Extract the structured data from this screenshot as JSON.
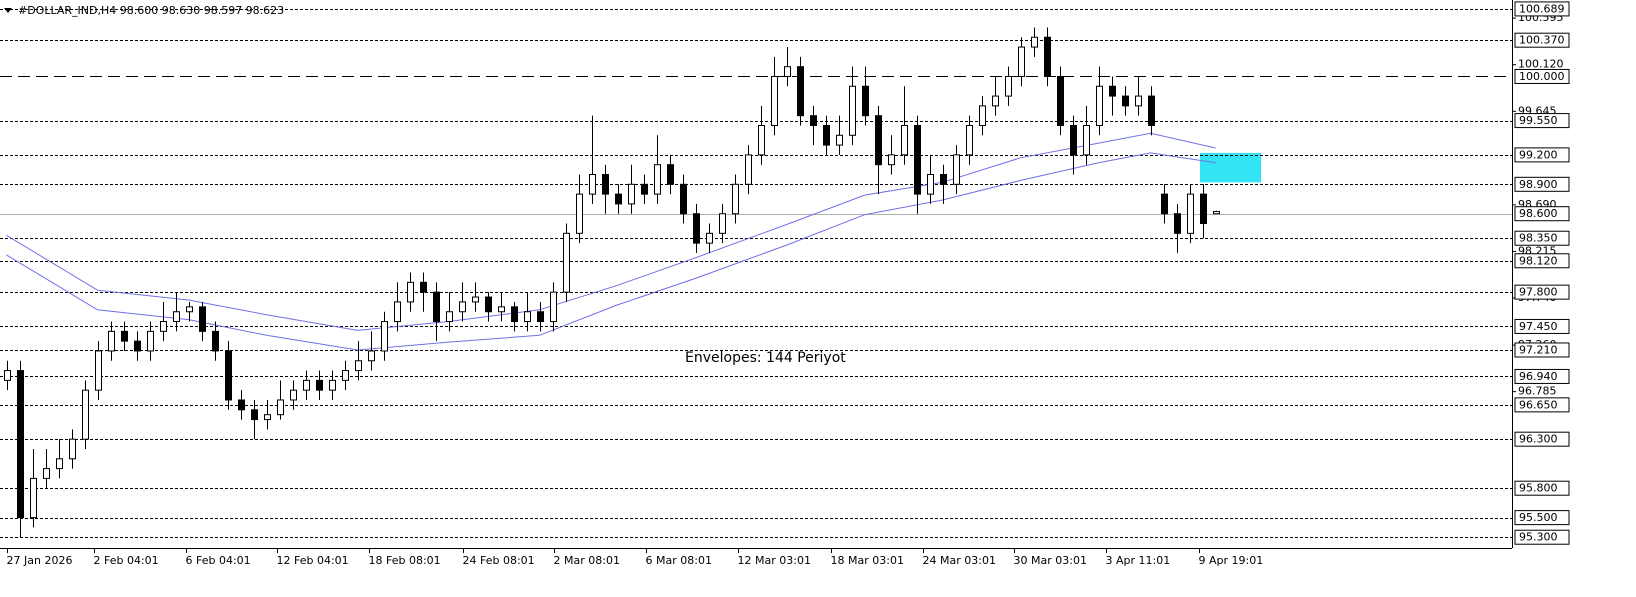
{
  "chart_data": {
    "type": "candlestick",
    "title": "#DOLLAR_IND,H4  98.600 98.630 98.597 98.623",
    "annotation": "Envelopes: 144 Periyot",
    "xlim": [
      -0.5,
      115.8
    ],
    "ylim": [
      95.19,
      100.78
    ],
    "candles": [
      [
        96.9,
        97.1,
        96.8,
        97.0
      ],
      [
        97.0,
        97.1,
        95.3,
        95.5
      ],
      [
        95.5,
        96.2,
        95.4,
        95.9
      ],
      [
        95.9,
        96.2,
        95.8,
        96.0
      ],
      [
        96.0,
        96.3,
        95.9,
        96.1
      ],
      [
        96.1,
        96.4,
        96.0,
        96.3
      ],
      [
        96.3,
        96.9,
        96.2,
        96.8
      ],
      [
        96.8,
        97.3,
        96.7,
        97.2
      ],
      [
        97.2,
        97.5,
        97.1,
        97.4
      ],
      [
        97.4,
        97.5,
        97.2,
        97.3
      ],
      [
        97.3,
        97.4,
        97.1,
        97.2
      ],
      [
        97.2,
        97.5,
        97.1,
        97.4
      ],
      [
        97.4,
        97.7,
        97.3,
        97.5
      ],
      [
        97.5,
        97.8,
        97.4,
        97.6
      ],
      [
        97.6,
        97.7,
        97.5,
        97.65
      ],
      [
        97.65,
        97.7,
        97.3,
        97.4
      ],
      [
        97.4,
        97.5,
        97.1,
        97.2
      ],
      [
        97.2,
        97.3,
        96.6,
        96.7
      ],
      [
        96.7,
        96.8,
        96.5,
        96.6
      ],
      [
        96.6,
        96.7,
        96.3,
        96.5
      ],
      [
        96.5,
        96.7,
        96.4,
        96.55
      ],
      [
        96.55,
        96.9,
        96.5,
        96.7
      ],
      [
        96.7,
        96.9,
        96.6,
        96.8
      ],
      [
        96.8,
        97.0,
        96.7,
        96.9
      ],
      [
        96.9,
        97.0,
        96.7,
        96.8
      ],
      [
        96.8,
        97.0,
        96.7,
        96.9
      ],
      [
        96.9,
        97.1,
        96.8,
        97.0
      ],
      [
        97.0,
        97.3,
        96.9,
        97.1
      ],
      [
        97.1,
        97.4,
        97.0,
        97.2
      ],
      [
        97.2,
        97.6,
        97.1,
        97.5
      ],
      [
        97.5,
        97.9,
        97.4,
        97.7
      ],
      [
        97.7,
        98.0,
        97.6,
        97.9
      ],
      [
        97.9,
        98.0,
        97.6,
        97.8
      ],
      [
        97.8,
        97.9,
        97.3,
        97.5
      ],
      [
        97.5,
        97.8,
        97.4,
        97.6
      ],
      [
        97.6,
        97.9,
        97.5,
        97.7
      ],
      [
        97.7,
        97.9,
        97.6,
        97.75
      ],
      [
        97.75,
        97.8,
        97.5,
        97.6
      ],
      [
        97.6,
        97.8,
        97.5,
        97.65
      ],
      [
        97.65,
        97.7,
        97.4,
        97.5
      ],
      [
        97.5,
        97.8,
        97.4,
        97.6
      ],
      [
        97.6,
        97.7,
        97.4,
        97.5
      ],
      [
        97.5,
        97.9,
        97.4,
        97.8
      ],
      [
        97.8,
        98.5,
        97.7,
        98.4
      ],
      [
        98.4,
        99.0,
        98.3,
        98.8
      ],
      [
        98.8,
        99.6,
        98.7,
        99.0
      ],
      [
        99.0,
        99.1,
        98.6,
        98.8
      ],
      [
        98.8,
        98.9,
        98.6,
        98.7
      ],
      [
        98.7,
        99.1,
        98.6,
        98.9
      ],
      [
        98.9,
        99.0,
        98.7,
        98.8
      ],
      [
        98.8,
        99.4,
        98.7,
        99.1
      ],
      [
        99.1,
        99.2,
        98.8,
        98.9
      ],
      [
        98.9,
        99.0,
        98.5,
        98.6
      ],
      [
        98.6,
        98.7,
        98.2,
        98.3
      ],
      [
        98.3,
        98.5,
        98.2,
        98.4
      ],
      [
        98.4,
        98.7,
        98.3,
        98.6
      ],
      [
        98.6,
        99.0,
        98.5,
        98.9
      ],
      [
        98.9,
        99.3,
        98.8,
        99.2
      ],
      [
        99.2,
        99.7,
        99.1,
        99.5
      ],
      [
        99.5,
        100.2,
        99.4,
        100.0
      ],
      [
        100.0,
        100.3,
        99.9,
        100.1
      ],
      [
        100.1,
        100.2,
        99.5,
        99.6
      ],
      [
        99.6,
        99.7,
        99.3,
        99.5
      ],
      [
        99.5,
        99.6,
        99.2,
        99.3
      ],
      [
        99.3,
        99.6,
        99.2,
        99.4
      ],
      [
        99.4,
        100.1,
        99.3,
        99.9
      ],
      [
        99.9,
        100.1,
        99.5,
        99.6
      ],
      [
        99.6,
        99.7,
        98.8,
        99.1
      ],
      [
        99.1,
        99.4,
        99.0,
        99.2
      ],
      [
        99.2,
        99.9,
        99.1,
        99.5
      ],
      [
        99.5,
        99.6,
        98.6,
        98.8
      ],
      [
        98.8,
        99.2,
        98.7,
        99.0
      ],
      [
        99.0,
        99.1,
        98.7,
        98.9
      ],
      [
        98.9,
        99.3,
        98.8,
        99.2
      ],
      [
        99.2,
        99.6,
        99.1,
        99.5
      ],
      [
        99.5,
        99.8,
        99.4,
        99.7
      ],
      [
        99.7,
        100.0,
        99.6,
        99.8
      ],
      [
        99.8,
        100.1,
        99.7,
        100.0
      ],
      [
        100.0,
        100.4,
        99.9,
        100.3
      ],
      [
        100.3,
        100.5,
        100.2,
        100.4
      ],
      [
        100.4,
        100.5,
        99.9,
        100.0
      ],
      [
        100.0,
        100.1,
        99.4,
        99.5
      ],
      [
        99.5,
        99.6,
        99.0,
        99.2
      ],
      [
        99.2,
        99.7,
        99.1,
        99.5
      ],
      [
        99.5,
        100.1,
        99.4,
        99.9
      ],
      [
        99.9,
        100.0,
        99.6,
        99.8
      ],
      [
        99.8,
        99.9,
        99.6,
        99.7
      ],
      [
        99.7,
        100.0,
        99.6,
        99.8
      ],
      [
        99.8,
        99.9,
        99.4,
        99.5
      ],
      [
        98.8,
        98.9,
        98.5,
        98.6
      ],
      [
        98.6,
        98.7,
        98.2,
        98.4
      ],
      [
        98.4,
        98.9,
        98.3,
        98.8
      ],
      [
        98.8,
        98.9,
        98.35,
        98.5
      ],
      [
        98.6,
        98.63,
        98.597,
        98.623
      ]
    ],
    "bull_color": "#ffffff",
    "bear_color": "#000000",
    "envelopes": {
      "color": "#7070e8",
      "x": [
        0,
        7,
        14,
        20,
        27,
        34,
        41,
        47,
        53,
        60,
        66,
        72,
        78,
        84,
        88,
        93
      ],
      "upper": [
        98.38,
        97.82,
        97.72,
        97.57,
        97.41,
        97.5,
        97.62,
        97.87,
        98.15,
        98.49,
        98.79,
        98.92,
        99.17,
        99.32,
        99.42,
        99.27
      ],
      "lower": [
        98.18,
        97.62,
        97.52,
        97.36,
        97.21,
        97.29,
        97.36,
        97.67,
        97.94,
        98.28,
        98.59,
        98.74,
        98.94,
        99.12,
        99.22,
        99.12
      ]
    },
    "zone": {
      "x": [
        91.8,
        96.5
      ],
      "y": [
        98.92,
        99.22
      ],
      "color": "#33e4f4"
    },
    "bid_line": 98.6,
    "levels": [
      {
        "value": 100.689,
        "label": "100.689"
      },
      {
        "value": 100.37,
        "label": "100.370"
      },
      {
        "value": 100.0,
        "label": "100.000"
      },
      {
        "value": 99.55,
        "label": "99.550"
      },
      {
        "value": 99.2,
        "label": "99.200"
      },
      {
        "value": 98.9,
        "label": "98.900"
      },
      {
        "value": 98.6,
        "label": "98.600"
      },
      {
        "value": 98.35,
        "label": "98.350"
      },
      {
        "value": 98.12,
        "label": "98.120"
      },
      {
        "value": 97.8,
        "label": "97.800"
      },
      {
        "value": 97.45,
        "label": "97.450"
      },
      {
        "value": 97.21,
        "label": "97.210"
      },
      {
        "value": 96.94,
        "label": "96.940"
      },
      {
        "value": 96.65,
        "label": "96.650"
      },
      {
        "value": 96.3,
        "label": "96.300"
      },
      {
        "value": 95.8,
        "label": "95.800"
      },
      {
        "value": 95.5,
        "label": "95.500"
      },
      {
        "value": 95.3,
        "label": "95.300"
      }
    ],
    "yticks": [
      100.595,
      {
        "value": 100.12,
        "label": "100.120"
      },
      99.645,
      {
        "value": 98.69,
        "label": "98.690"
      },
      98.215,
      {
        "value": 97.74,
        "label": "97.740"
      },
      {
        "value": 97.26,
        "label": "97.260"
      },
      96.785
    ],
    "xticks": [
      {
        "value": 0,
        "label": "27 Jan 2026"
      },
      {
        "value": 6.7,
        "label": "2 Feb 04:01"
      },
      {
        "value": 13.8,
        "label": "6 Feb 04:01"
      },
      {
        "value": 20.8,
        "label": "12 Feb 04:01"
      },
      {
        "value": 27.9,
        "label": "18 Feb 08:01"
      },
      {
        "value": 35.1,
        "label": "24 Feb 08:01"
      },
      {
        "value": 42.1,
        "label": "2 Mar 08:01"
      },
      {
        "value": 49.2,
        "label": "6 Mar 08:01"
      },
      {
        "value": 56.3,
        "label": "12 Mar 03:01"
      },
      {
        "value": 63.4,
        "label": "18 Mar 03:01"
      },
      {
        "value": 70.5,
        "label": "24 Mar 03:01"
      },
      {
        "value": 77.5,
        "label": "30 Mar 03:01"
      },
      {
        "value": 84.6,
        "label": "3 Apr 11:01"
      },
      {
        "value": 91.7,
        "label": "9 Apr 19:01"
      }
    ]
  }
}
